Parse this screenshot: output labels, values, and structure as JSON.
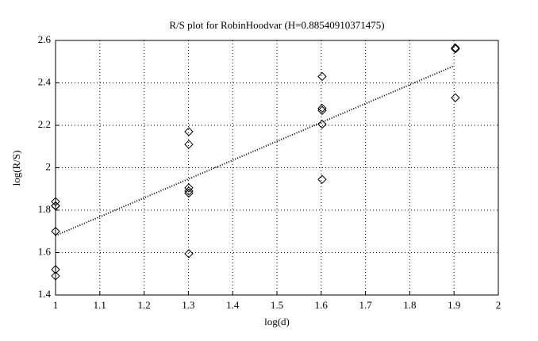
{
  "chart_data": {
    "type": "scatter",
    "title": "R/S plot for RobinHoodvar (H=0.88540910371475)",
    "x_label": "log(d)",
    "y_label": "log(R/S)",
    "xlim": [
      1,
      2
    ],
    "ylim": [
      1.4,
      2.6
    ],
    "xticks": [
      1,
      1.1,
      1.2,
      1.3,
      1.4,
      1.5,
      1.6,
      1.7,
      1.8,
      1.9,
      2
    ],
    "yticks": [
      1.4,
      1.6,
      1.8,
      2,
      2.2,
      2.4,
      2.6
    ],
    "grid": true,
    "series": [
      {
        "marker": "diamond",
        "color": "#000000",
        "x": [
          1,
          1,
          1,
          1,
          1,
          1,
          1.301,
          1.301,
          1.301,
          1.301,
          1.301,
          1.301,
          1.602,
          1.602,
          1.602,
          1.602,
          1.602,
          1.903,
          1.903,
          1.903
        ],
        "values": [
          1.84,
          1.82,
          1.82,
          1.7,
          1.52,
          1.49,
          2.17,
          2.11,
          1.905,
          1.89,
          1.88,
          1.595,
          2.43,
          2.28,
          2.27,
          2.205,
          1.945,
          2.565,
          2.56,
          2.33
        ]
      },
      {
        "line": "dotted",
        "color": "#000000",
        "x": [
          1,
          1.9
        ],
        "values": [
          1.68,
          2.48
        ]
      }
    ]
  }
}
